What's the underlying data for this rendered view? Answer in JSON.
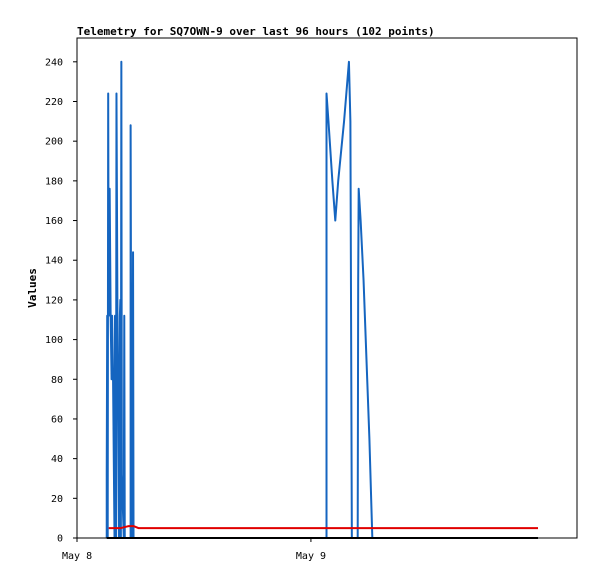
{
  "chart_data": {
    "type": "line",
    "title": "Telemetry for SQ7OWN-9 over last 96 hours (102 points)",
    "xlabel": "",
    "ylabel": "Values",
    "x_axis": {
      "unit": "hours",
      "range": [
        0,
        51.3
      ],
      "tick_labels": [
        {
          "label": "May 8",
          "hours": 0
        },
        {
          "label": "May 9",
          "hours": 24
        }
      ]
    },
    "ylim": [
      0,
      252
    ],
    "yticks": [
      0,
      20,
      40,
      60,
      80,
      100,
      120,
      140,
      160,
      180,
      200,
      220,
      240
    ],
    "grid": false,
    "legend": "none",
    "series": [
      {
        "color": "#1565c0",
        "points": [
          [
            3.05,
            0
          ],
          [
            3.05,
            32
          ],
          [
            3.1,
            112
          ],
          [
            3.15,
            0
          ],
          [
            3.2,
            224
          ],
          [
            3.25,
            112
          ],
          [
            3.35,
            176
          ],
          [
            3.45,
            112
          ],
          [
            3.55,
            80
          ],
          [
            3.6,
            112
          ],
          [
            3.7,
            80
          ],
          [
            3.85,
            0
          ],
          [
            3.9,
            112
          ],
          [
            4.0,
            0
          ],
          [
            4.05,
            224
          ],
          [
            4.15,
            112
          ],
          [
            4.3,
            0
          ],
          [
            4.4,
            112
          ],
          [
            4.45,
            120
          ],
          [
            4.5,
            0
          ],
          [
            4.55,
            240
          ],
          [
            4.6,
            32
          ],
          [
            4.8,
            0
          ],
          [
            4.85,
            112
          ],
          [
            4.9,
            0
          ],
          [
            5.2,
            0
          ],
          [
            5.5,
            0
          ],
          [
            5.5,
            208
          ],
          [
            5.6,
            0
          ],
          [
            5.7,
            0
          ],
          [
            5.75,
            144
          ],
          [
            5.8,
            0
          ],
          [
            25.6,
            0
          ],
          [
            25.6,
            224
          ],
          [
            25.8,
            210
          ],
          [
            26.2,
            180
          ],
          [
            26.5,
            160
          ],
          [
            26.8,
            180
          ],
          [
            27.4,
            210
          ],
          [
            27.9,
            240
          ],
          [
            28.05,
            210
          ],
          [
            28.2,
            0
          ],
          [
            28.8,
            0
          ],
          [
            28.85,
            130
          ],
          [
            28.9,
            176
          ],
          [
            29.1,
            160
          ],
          [
            29.4,
            130
          ],
          [
            29.7,
            90
          ],
          [
            30.0,
            50
          ],
          [
            30.3,
            0
          ]
        ]
      },
      {
        "color": "#e00000",
        "points": [
          [
            3.25,
            5
          ],
          [
            4.5,
            5
          ],
          [
            5.3,
            6
          ],
          [
            5.8,
            6
          ],
          [
            6.3,
            5
          ],
          [
            47.3,
            5
          ]
        ]
      },
      {
        "color": "#000000",
        "points": [
          [
            3.05,
            0
          ],
          [
            47.3,
            0
          ]
        ]
      }
    ]
  }
}
